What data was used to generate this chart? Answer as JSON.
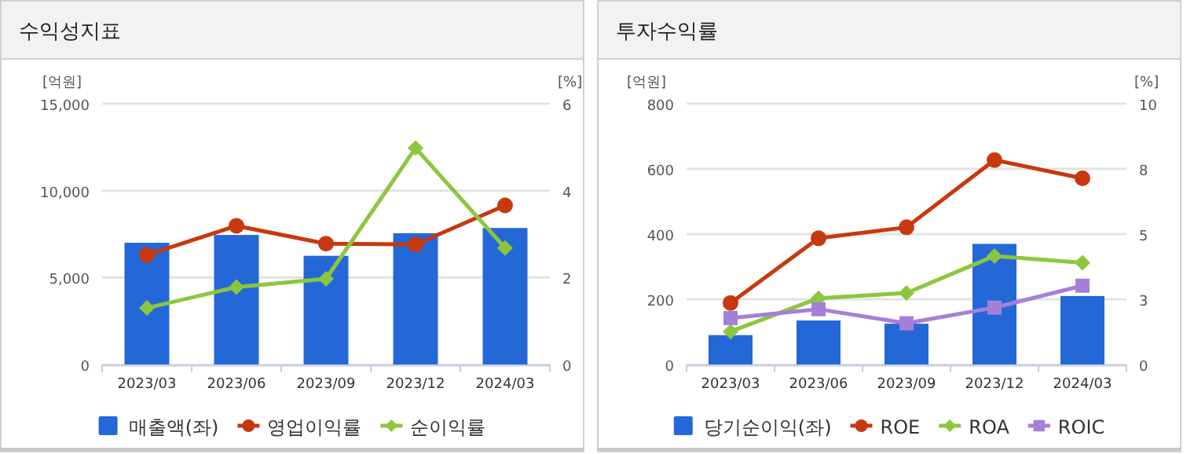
{
  "chart_data": [
    {
      "type": "bar",
      "title": "수익성지표",
      "ylabel": "[억원]",
      "y2label": "[%]",
      "categories": [
        "2023/03",
        "2023/06",
        "2023/09",
        "2023/12",
        "2024/03"
      ],
      "series": [
        {
          "name": "매출액(좌)",
          "color": "#2468d8",
          "values": [
            7000,
            7450,
            6250,
            7550,
            7850
          ]
        },
        {
          "name": "영업이익률",
          "type": "line",
          "axis": "y2",
          "marker": "circle",
          "color": "#c8380e",
          "values": [
            2.52,
            3.19,
            2.78,
            2.76,
            3.66
          ]
        },
        {
          "name": "순이익률",
          "type": "line",
          "axis": "y2",
          "marker": "diamond",
          "color": "#8cc63e",
          "values": [
            1.3,
            1.78,
            1.97,
            4.98,
            2.68
          ]
        }
      ],
      "ylim": [
        0,
        15000
      ],
      "yticks": [
        0,
        {
          "value": 5000,
          "label": "5,000"
        },
        {
          "value": 10000,
          "label": "10,000"
        },
        {
          "value": 15000,
          "label": "15,000"
        }
      ],
      "y2lim": [
        0,
        6
      ],
      "y2ticks": [
        0,
        2,
        4,
        6
      ],
      "grid": "y",
      "legend": "bottom"
    },
    {
      "type": "bar",
      "title": "투자수익률",
      "ylabel": "[억원]",
      "y2label": "[%]",
      "categories": [
        "2023/03",
        "2023/06",
        "2023/09",
        "2023/12",
        "2024/03"
      ],
      "series": [
        {
          "name": "당기순이익(좌)",
          "color": "#2468d8",
          "values": [
            90,
            135,
            125,
            370,
            210
          ]
        },
        {
          "name": "ROE",
          "type": "line",
          "axis": "y2",
          "marker": "circle",
          "color": "#c8380e",
          "values": [
            2.36,
            4.84,
            5.26,
            7.84,
            7.14
          ]
        },
        {
          "name": "ROA",
          "type": "line",
          "axis": "y2",
          "marker": "diamond",
          "color": "#8cc63e",
          "values": [
            1.26,
            2.54,
            2.74,
            4.16,
            3.9
          ]
        },
        {
          "name": "ROIC",
          "type": "line",
          "axis": "y2",
          "marker": "square",
          "color": "#a67fd9",
          "values": [
            1.78,
            2.12,
            1.58,
            2.18,
            3.02
          ]
        }
      ],
      "ylim": [
        0,
        800
      ],
      "yticks": [
        0,
        200,
        400,
        600,
        800
      ],
      "y2lim": [
        0,
        10
      ],
      "y2ticks": [
        0,
        {
          "value": 2.5,
          "label": "3"
        },
        5,
        {
          "value": 7.5,
          "label": "8"
        },
        10
      ],
      "grid": "y",
      "legend": "bottom"
    }
  ]
}
